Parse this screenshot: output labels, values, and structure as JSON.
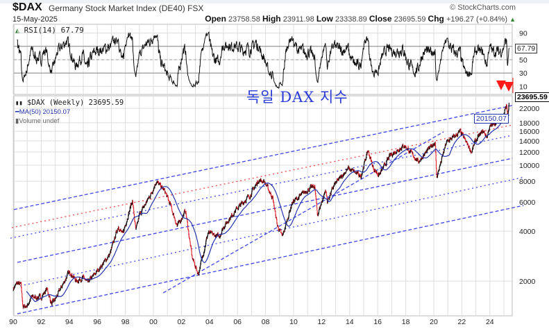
{
  "header": {
    "symbol": "$DAX",
    "name": "Germany Stock Market Index (DE40)",
    "exchange": "FSX",
    "date": "15-May-2025",
    "copyright": "© StockCharts.com",
    "open_label": "Open",
    "open": "23758.58",
    "high_label": "High",
    "high": "23911.98",
    "low_label": "Low",
    "low": "23338.89",
    "close_label": "Close",
    "close": "23695.59",
    "chg_label": "Chg",
    "chg": "+196.27 (+0.84%)",
    "up_icon": "▲"
  },
  "annotation": "독일 DAX 지수",
  "rsi_panel": {
    "label": "RSI(14) 67.79",
    "value_box": "67.79",
    "ticks": [
      "90",
      "50",
      "30",
      "10"
    ]
  },
  "legend": {
    "price": "$DAX (Weekly) 23695.59",
    "ma": "MA(50) 20150.07",
    "volume": "Volume undef"
  },
  "price_box": "23695.59",
  "ma_box": "20150.07",
  "colors": {
    "price": "#000000",
    "down": "#e0202a",
    "ma": "#2233aa",
    "trend": "#3b45e8",
    "trend_red": "#ee4444",
    "grid": "#dcdcdc",
    "annotation": "#2a3bd6"
  },
  "chart_data": {
    "type": "line",
    "title": "$DAX Germany Stock Market Index (DE40) Weekly",
    "scale": "log",
    "ylim": [
      1240,
      26000
    ],
    "xlim": [
      1990,
      2025.6
    ],
    "x_ticks": [
      "90",
      "92",
      "94",
      "96",
      "98",
      "00",
      "02",
      "04",
      "06",
      "08",
      "10",
      "12",
      "14",
      "16",
      "18",
      "20",
      "22",
      "24"
    ],
    "x_tick_years": [
      1990,
      1992,
      1994,
      1996,
      1998,
      2000,
      2002,
      2004,
      2006,
      2008,
      2010,
      2012,
      2014,
      2016,
      2018,
      2020,
      2022,
      2024
    ],
    "y_ticks": [
      22000,
      18000,
      16000,
      14000,
      12000,
      10000,
      8000,
      6000,
      4000,
      2000
    ],
    "y_tick_labels": [
      "22000",
      "18000",
      "16000",
      "14000",
      "12000",
      "10000",
      "8000",
      "6000",
      "4000",
      "2000"
    ],
    "rsi_ylim": [
      10,
      100
    ],
    "rsi_levels": [
      70,
      50,
      30
    ],
    "price_anchors": [
      [
        1990.0,
        1800
      ],
      [
        1990.3,
        1950
      ],
      [
        1990.55,
        1900
      ],
      [
        1990.7,
        1400
      ],
      [
        1991.0,
        1420
      ],
      [
        1991.3,
        1600
      ],
      [
        1992.0,
        1600
      ],
      [
        1992.4,
        1800
      ],
      [
        1992.75,
        1450
      ],
      [
        1993.0,
        1550
      ],
      [
        1993.9,
        2200
      ],
      [
        1994.1,
        2250
      ],
      [
        1994.5,
        2000
      ],
      [
        1995.0,
        2100
      ],
      [
        1995.3,
        1950
      ],
      [
        1996.0,
        2300
      ],
      [
        1996.9,
        2900
      ],
      [
        1997.5,
        4300
      ],
      [
        1997.8,
        3800
      ],
      [
        1998.5,
        6150
      ],
      [
        1998.75,
        4000
      ],
      [
        1999.0,
        5000
      ],
      [
        1999.9,
        6900
      ],
      [
        2000.2,
        8000
      ],
      [
        2000.8,
        7000
      ],
      [
        2001.2,
        5800
      ],
      [
        2001.7,
        4300
      ],
      [
        2002.3,
        5300
      ],
      [
        2002.75,
        2800
      ],
      [
        2003.2,
        2200
      ],
      [
        2003.9,
        3900
      ],
      [
        2004.7,
        3700
      ],
      [
        2005.0,
        4250
      ],
      [
        2005.9,
        5400
      ],
      [
        2006.9,
        6600
      ],
      [
        2007.5,
        8100
      ],
      [
        2007.9,
        8000
      ],
      [
        2008.5,
        6400
      ],
      [
        2008.85,
        4300
      ],
      [
        2009.2,
        3700
      ],
      [
        2009.9,
        5950
      ],
      [
        2010.9,
        7000
      ],
      [
        2011.5,
        7500
      ],
      [
        2011.7,
        5000
      ],
      [
        2012.0,
        6000
      ],
      [
        2012.3,
        7100
      ],
      [
        2012.4,
        6000
      ],
      [
        2012.9,
        7600
      ],
      [
        2013.9,
        9550
      ],
      [
        2014.8,
        8600
      ],
      [
        2015.3,
        12300
      ],
      [
        2015.7,
        9500
      ],
      [
        2016.1,
        8700
      ],
      [
        2016.9,
        11480
      ],
      [
        2017.9,
        13200
      ],
      [
        2018.9,
        10500
      ],
      [
        2019.9,
        13250
      ],
      [
        2020.1,
        13800
      ],
      [
        2020.2,
        8400
      ],
      [
        2020.9,
        13700
      ],
      [
        2021.9,
        15900
      ],
      [
        2022.7,
        12000
      ],
      [
        2022.95,
        13900
      ],
      [
        2023.5,
        16100
      ],
      [
        2023.8,
        14800
      ],
      [
        2023.95,
        16750
      ],
      [
        2024.95,
        20000
      ],
      [
        2025.2,
        23000
      ],
      [
        2025.27,
        19500
      ],
      [
        2025.37,
        23695.59
      ]
    ],
    "ma_period": 50,
    "rsi_period": 14,
    "last_close": 23695.59,
    "last_ma": 20150.07,
    "last_rsi": 67.79,
    "trendlines": [
      {
        "style": "dashed",
        "color": "blue",
        "from": [
          1990.05,
          5400
        ],
        "to": [
          2025.6,
          22900
        ]
      },
      {
        "style": "dotted",
        "color": "red",
        "from": [
          1989.9,
          4200
        ],
        "to": [
          2025.6,
          17470
        ]
      },
      {
        "style": "dotted",
        "color": "blue",
        "from": [
          1989.8,
          3630
        ],
        "to": [
          2025.6,
          15130
        ]
      },
      {
        "style": "dashed",
        "color": "blue",
        "from": [
          1990.3,
          2594
        ],
        "to": [
          2025.6,
          11000
        ]
      },
      {
        "style": "dotted",
        "color": "blue",
        "from": [
          1990.5,
          1870
        ],
        "to": [
          2026.5,
          8490
        ]
      },
      {
        "style": "dashed",
        "color": "blue",
        "from": [
          1990.3,
          1271
        ],
        "to": [
          2026.4,
          5716
        ]
      },
      {
        "style": "dashed",
        "color": "blue",
        "from": [
          2000.7,
          1698
        ],
        "to": [
          2020.7,
          15880
        ]
      }
    ]
  }
}
